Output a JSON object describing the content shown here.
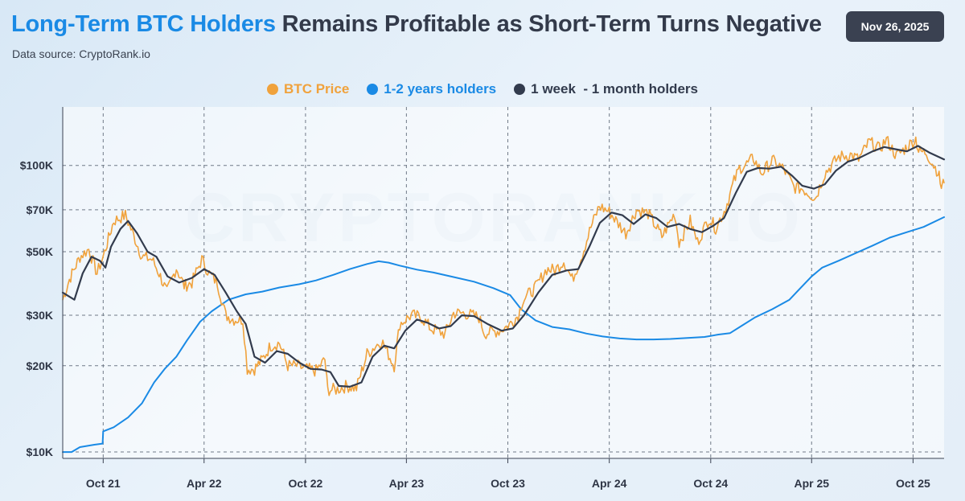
{
  "header": {
    "title_highlight": "Long-Term BTC Holders",
    "title_rest": "Remains Profitable as Short-Term Turns Negative",
    "source": "Data source: CryptoRank.io",
    "date": "Nov 26, 2025"
  },
  "watermark": "CRYPTORANK.IO",
  "colors": {
    "btc_price": "#f0a23c",
    "long_term": "#1a8ae5",
    "short_term": "#323b4d",
    "title_accent": "#1a8ae5"
  },
  "chart_data": {
    "type": "line",
    "yscale": "log",
    "ylim": [
      9500,
      160000
    ],
    "xlim": [
      "2021-07-20",
      "2025-11-26"
    ],
    "grid": true,
    "legend_position": "top-center",
    "y_ticks": [
      {
        "value": 10000,
        "label": "$10K"
      },
      {
        "value": 20000,
        "label": "$20K"
      },
      {
        "value": 30000,
        "label": "$30K"
      },
      {
        "value": 50000,
        "label": "$50K"
      },
      {
        "value": 70000,
        "label": "$70K"
      },
      {
        "value": 100000,
        "label": "$100K"
      }
    ],
    "x_ticks": [
      {
        "date": "2021-10-01",
        "label": "Oct 21"
      },
      {
        "date": "2022-04-01",
        "label": "Apr 22"
      },
      {
        "date": "2022-10-01",
        "label": "Oct 22"
      },
      {
        "date": "2023-04-01",
        "label": "Apr 23"
      },
      {
        "date": "2023-10-01",
        "label": "Oct 23"
      },
      {
        "date": "2024-04-01",
        "label": "Apr 24"
      },
      {
        "date": "2024-10-01",
        "label": "Oct 24"
      },
      {
        "date": "2025-04-01",
        "label": "Apr 25"
      },
      {
        "date": "2025-10-01",
        "label": "Oct 25"
      }
    ],
    "series": [
      {
        "name": "BTC Price",
        "color": "#f0a23c",
        "points": [
          [
            "2021-07-20",
            34000
          ],
          [
            "2021-08-01",
            40000
          ],
          [
            "2021-08-20",
            48000
          ],
          [
            "2021-09-05",
            51000
          ],
          [
            "2021-09-20",
            42000
          ],
          [
            "2021-10-01",
            48000
          ],
          [
            "2021-10-20",
            64000
          ],
          [
            "2021-11-10",
            67000
          ],
          [
            "2021-11-25",
            57000
          ],
          [
            "2021-12-10",
            48000
          ],
          [
            "2021-12-28",
            47000
          ],
          [
            "2022-01-10",
            42000
          ],
          [
            "2022-01-24",
            36000
          ],
          [
            "2022-02-10",
            44000
          ],
          [
            "2022-02-24",
            38000
          ],
          [
            "2022-03-10",
            39000
          ],
          [
            "2022-03-28",
            47000
          ],
          [
            "2022-04-10",
            42000
          ],
          [
            "2022-04-25",
            39000
          ],
          [
            "2022-05-10",
            30000
          ],
          [
            "2022-05-25",
            29000
          ],
          [
            "2022-06-10",
            29000
          ],
          [
            "2022-06-18",
            19500
          ],
          [
            "2022-07-01",
            19500
          ],
          [
            "2022-07-15",
            21000
          ],
          [
            "2022-07-30",
            23500
          ],
          [
            "2022-08-15",
            24000
          ],
          [
            "2022-08-30",
            20000
          ],
          [
            "2022-09-15",
            20000
          ],
          [
            "2022-10-01",
            19500
          ],
          [
            "2022-10-20",
            19200
          ],
          [
            "2022-11-05",
            21000
          ],
          [
            "2022-11-10",
            16500
          ],
          [
            "2022-11-25",
            16500
          ],
          [
            "2022-12-15",
            17000
          ],
          [
            "2023-01-01",
            16700
          ],
          [
            "2023-01-20",
            22000
          ],
          [
            "2023-02-15",
            24500
          ],
          [
            "2023-03-10",
            20000
          ],
          [
            "2023-03-20",
            28000
          ],
          [
            "2023-04-10",
            30000
          ],
          [
            "2023-04-28",
            29500
          ],
          [
            "2023-05-15",
            27000
          ],
          [
            "2023-06-10",
            25800
          ],
          [
            "2023-06-25",
            30500
          ],
          [
            "2023-07-15",
            30500
          ],
          [
            "2023-08-10",
            29500
          ],
          [
            "2023-08-20",
            26000
          ],
          [
            "2023-09-15",
            26500
          ],
          [
            "2023-10-01",
            27500
          ],
          [
            "2023-10-20",
            30000
          ],
          [
            "2023-10-28",
            34000
          ],
          [
            "2023-11-20",
            37500
          ],
          [
            "2023-12-10",
            43500
          ],
          [
            "2023-12-25",
            43000
          ],
          [
            "2024-01-10",
            46500
          ],
          [
            "2024-01-25",
            40000
          ],
          [
            "2024-02-10",
            47500
          ],
          [
            "2024-02-28",
            61000
          ],
          [
            "2024-03-14",
            72000
          ],
          [
            "2024-04-01",
            69000
          ],
          [
            "2024-04-15",
            63500
          ],
          [
            "2024-05-01",
            58000
          ],
          [
            "2024-05-20",
            70000
          ],
          [
            "2024-06-10",
            68000
          ],
          [
            "2024-07-05",
            56500
          ],
          [
            "2024-07-28",
            68000
          ],
          [
            "2024-08-05",
            54000
          ],
          [
            "2024-08-25",
            64000
          ],
          [
            "2024-09-07",
            54000
          ],
          [
            "2024-09-28",
            65500
          ],
          [
            "2024-10-10",
            60500
          ],
          [
            "2024-10-28",
            71000
          ],
          [
            "2024-11-12",
            88000
          ],
          [
            "2024-11-22",
            98000
          ],
          [
            "2024-12-05",
            101000
          ],
          [
            "2024-12-17",
            106000
          ],
          [
            "2025-01-01",
            94000
          ],
          [
            "2025-01-20",
            104000
          ],
          [
            "2025-02-10",
            97000
          ],
          [
            "2025-02-28",
            84000
          ],
          [
            "2025-03-15",
            83000
          ],
          [
            "2025-04-08",
            77000
          ],
          [
            "2025-04-25",
            94000
          ],
          [
            "2025-05-20",
            107000
          ],
          [
            "2025-06-10",
            109000
          ],
          [
            "2025-06-25",
            105000
          ],
          [
            "2025-07-14",
            121000
          ],
          [
            "2025-08-01",
            114000
          ],
          [
            "2025-08-14",
            123000
          ],
          [
            "2025-09-01",
            108000
          ],
          [
            "2025-09-20",
            116000
          ],
          [
            "2025-10-06",
            124000
          ],
          [
            "2025-10-11",
            112000
          ],
          [
            "2025-10-25",
            111000
          ],
          [
            "2025-11-05",
            102000
          ],
          [
            "2025-11-15",
            95000
          ],
          [
            "2025-11-21",
            84000
          ],
          [
            "2025-11-26",
            87000
          ]
        ]
      },
      {
        "name": "1-2 years holders",
        "color": "#1a8ae5",
        "points": [
          [
            "2021-07-20",
            10000
          ],
          [
            "2021-08-05",
            10000
          ],
          [
            "2021-08-20",
            10400
          ],
          [
            "2021-09-15",
            10600
          ],
          [
            "2021-09-30",
            10700
          ],
          [
            "2021-10-01",
            11800
          ],
          [
            "2021-10-20",
            12200
          ],
          [
            "2021-11-15",
            13200
          ],
          [
            "2021-12-10",
            14800
          ],
          [
            "2022-01-01",
            17500
          ],
          [
            "2022-01-20",
            19500
          ],
          [
            "2022-02-10",
            21500
          ],
          [
            "2022-03-01",
            24500
          ],
          [
            "2022-03-25",
            28500
          ],
          [
            "2022-04-15",
            31000
          ],
          [
            "2022-05-15",
            34000
          ],
          [
            "2022-06-15",
            35500
          ],
          [
            "2022-07-15",
            36300
          ],
          [
            "2022-08-15",
            37500
          ],
          [
            "2022-09-20",
            38500
          ],
          [
            "2022-10-20",
            39700
          ],
          [
            "2022-11-20",
            41500
          ],
          [
            "2022-12-20",
            43500
          ],
          [
            "2023-01-20",
            45300
          ],
          [
            "2023-02-10",
            46300
          ],
          [
            "2023-02-28",
            45800
          ],
          [
            "2023-03-20",
            44700
          ],
          [
            "2023-04-20",
            43300
          ],
          [
            "2023-05-20",
            42300
          ],
          [
            "2023-06-25",
            40800
          ],
          [
            "2023-08-01",
            39300
          ],
          [
            "2023-09-05",
            37300
          ],
          [
            "2023-10-05",
            35300
          ],
          [
            "2023-10-25",
            31500
          ],
          [
            "2023-11-20",
            28800
          ],
          [
            "2023-12-20",
            27300
          ],
          [
            "2024-01-20",
            26800
          ],
          [
            "2024-02-20",
            25900
          ],
          [
            "2024-03-20",
            25300
          ],
          [
            "2024-04-20",
            24900
          ],
          [
            "2024-05-20",
            24700
          ],
          [
            "2024-06-20",
            24700
          ],
          [
            "2024-07-20",
            24800
          ],
          [
            "2024-08-20",
            25000
          ],
          [
            "2024-09-20",
            25200
          ],
          [
            "2024-10-15",
            25700
          ],
          [
            "2024-11-05",
            26000
          ],
          [
            "2024-11-25",
            27500
          ],
          [
            "2024-12-20",
            29500
          ],
          [
            "2025-01-20",
            31500
          ],
          [
            "2025-02-20",
            34000
          ],
          [
            "2025-03-10",
            37000
          ],
          [
            "2025-04-01",
            41000
          ],
          [
            "2025-04-20",
            44000
          ],
          [
            "2025-05-20",
            46500
          ],
          [
            "2025-06-20",
            49500
          ],
          [
            "2025-07-20",
            52500
          ],
          [
            "2025-08-20",
            56000
          ],
          [
            "2025-09-20",
            58500
          ],
          [
            "2025-10-20",
            61000
          ],
          [
            "2025-11-26",
            66000
          ]
        ]
      },
      {
        "name": "1 week  - 1 month holders",
        "color": "#323b4d",
        "points": [
          [
            "2021-07-20",
            36000
          ],
          [
            "2021-08-10",
            34000
          ],
          [
            "2021-08-25",
            42000
          ],
          [
            "2021-09-10",
            48000
          ],
          [
            "2021-09-25",
            46500
          ],
          [
            "2021-10-05",
            44000
          ],
          [
            "2021-10-15",
            52000
          ],
          [
            "2021-11-01",
            60000
          ],
          [
            "2021-11-15",
            64000
          ],
          [
            "2021-12-01",
            58000
          ],
          [
            "2021-12-20",
            50000
          ],
          [
            "2022-01-05",
            48000
          ],
          [
            "2022-01-25",
            41000
          ],
          [
            "2022-02-15",
            39000
          ],
          [
            "2022-03-10",
            40500
          ],
          [
            "2022-04-01",
            43500
          ],
          [
            "2022-04-20",
            41500
          ],
          [
            "2022-05-10",
            36000
          ],
          [
            "2022-05-30",
            31000
          ],
          [
            "2022-06-15",
            28000
          ],
          [
            "2022-07-01",
            21500
          ],
          [
            "2022-07-20",
            20500
          ],
          [
            "2022-08-10",
            22500
          ],
          [
            "2022-08-30",
            22000
          ],
          [
            "2022-09-20",
            20500
          ],
          [
            "2022-10-10",
            19500
          ],
          [
            "2022-10-30",
            19400
          ],
          [
            "2022-11-15",
            19000
          ],
          [
            "2022-11-30",
            17000
          ],
          [
            "2022-12-20",
            16900
          ],
          [
            "2023-01-10",
            17500
          ],
          [
            "2023-01-30",
            21500
          ],
          [
            "2023-02-20",
            23500
          ],
          [
            "2023-03-10",
            23000
          ],
          [
            "2023-03-30",
            26500
          ],
          [
            "2023-04-20",
            29000
          ],
          [
            "2023-05-10",
            28200
          ],
          [
            "2023-05-30",
            27000
          ],
          [
            "2023-06-20",
            27500
          ],
          [
            "2023-07-10",
            30000
          ],
          [
            "2023-08-01",
            29800
          ],
          [
            "2023-08-25",
            28000
          ],
          [
            "2023-09-20",
            26500
          ],
          [
            "2023-10-10",
            27000
          ],
          [
            "2023-10-30",
            30000
          ],
          [
            "2023-11-25",
            36000
          ],
          [
            "2023-12-20",
            41500
          ],
          [
            "2024-01-15",
            43000
          ],
          [
            "2024-02-05",
            43500
          ],
          [
            "2024-02-25",
            52000
          ],
          [
            "2024-03-15",
            63000
          ],
          [
            "2024-04-05",
            68500
          ],
          [
            "2024-04-25",
            67000
          ],
          [
            "2024-05-15",
            62500
          ],
          [
            "2024-06-05",
            67500
          ],
          [
            "2024-06-25",
            65500
          ],
          [
            "2024-07-15",
            61000
          ],
          [
            "2024-08-05",
            62500
          ],
          [
            "2024-08-25",
            60000
          ],
          [
            "2024-09-15",
            58500
          ],
          [
            "2024-10-05",
            61500
          ],
          [
            "2024-10-25",
            65500
          ],
          [
            "2024-11-15",
            80000
          ],
          [
            "2024-12-05",
            95000
          ],
          [
            "2024-12-25",
            98000
          ],
          [
            "2025-01-15",
            97500
          ],
          [
            "2025-02-05",
            99000
          ],
          [
            "2025-02-25",
            92000
          ],
          [
            "2025-03-15",
            85000
          ],
          [
            "2025-04-05",
            83000
          ],
          [
            "2025-04-25",
            86000
          ],
          [
            "2025-05-15",
            96000
          ],
          [
            "2025-06-05",
            103000
          ],
          [
            "2025-06-25",
            106000
          ],
          [
            "2025-07-20",
            112000
          ],
          [
            "2025-08-10",
            116000
          ],
          [
            "2025-08-30",
            114000
          ],
          [
            "2025-09-20",
            112000
          ],
          [
            "2025-10-10",
            117000
          ],
          [
            "2025-10-30",
            111000
          ],
          [
            "2025-11-26",
            105000
          ]
        ]
      }
    ]
  }
}
